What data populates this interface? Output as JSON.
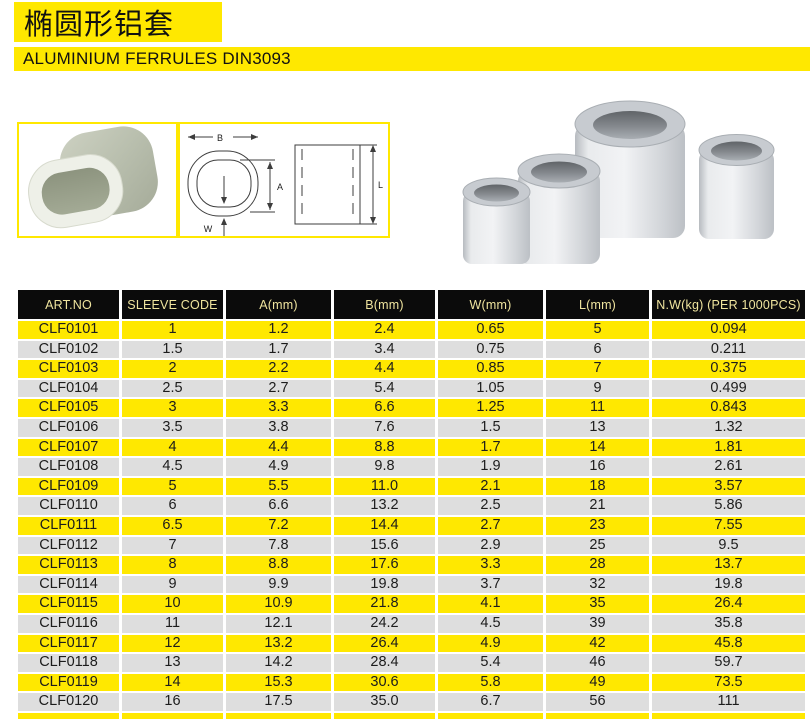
{
  "header": {
    "title_cn": "椭圆形铝套",
    "subtitle": "ALUMINIUM FERRULES DIN3093"
  },
  "diagram": {
    "labels": {
      "b": "B",
      "a": "A",
      "w": "W",
      "l": "L"
    }
  },
  "colors": {
    "yellow": "#ffe800",
    "row_gray": "#dedede",
    "header_bg": "#0b0b0b",
    "header_text": "#efe49e"
  },
  "table": {
    "columns": [
      "ART.NO",
      "SLEEVE CODE",
      "A(mm)",
      "B(mm)",
      "W(mm)",
      "L(mm)",
      "N.W(kg) (PER 1000PCS)"
    ],
    "rows": [
      [
        "CLF0101",
        "1",
        "1.2",
        "2.4",
        "0.65",
        "5",
        "0.094"
      ],
      [
        "CLF0102",
        "1.5",
        "1.7",
        "3.4",
        "0.75",
        "6",
        "0.211"
      ],
      [
        "CLF0103",
        "2",
        "2.2",
        "4.4",
        "0.85",
        "7",
        "0.375"
      ],
      [
        "CLF0104",
        "2.5",
        "2.7",
        "5.4",
        "1.05",
        "9",
        "0.499"
      ],
      [
        "CLF0105",
        "3",
        "3.3",
        "6.6",
        "1.25",
        "11",
        "0.843"
      ],
      [
        "CLF0106",
        "3.5",
        "3.8",
        "7.6",
        "1.5",
        "13",
        "1.32"
      ],
      [
        "CLF0107",
        "4",
        "4.4",
        "8.8",
        "1.7",
        "14",
        "1.81"
      ],
      [
        "CLF0108",
        "4.5",
        "4.9",
        "9.8",
        "1.9",
        "16",
        "2.61"
      ],
      [
        "CLF0109",
        "5",
        "5.5",
        "11.0",
        "2.1",
        "18",
        "3.57"
      ],
      [
        "CLF0110",
        "6",
        "6.6",
        "13.2",
        "2.5",
        "21",
        "5.86"
      ],
      [
        "CLF0111",
        "6.5",
        "7.2",
        "14.4",
        "2.7",
        "23",
        "7.55"
      ],
      [
        "CLF0112",
        "7",
        "7.8",
        "15.6",
        "2.9",
        "25",
        "9.5"
      ],
      [
        "CLF0113",
        "8",
        "8.8",
        "17.6",
        "3.3",
        "28",
        "13.7"
      ],
      [
        "CLF0114",
        "9",
        "9.9",
        "19.8",
        "3.7",
        "32",
        "19.8"
      ],
      [
        "CLF0115",
        "10",
        "10.9",
        "21.8",
        "4.1",
        "35",
        "26.4"
      ],
      [
        "CLF0116",
        "11",
        "12.1",
        "24.2",
        "4.5",
        "39",
        "35.8"
      ],
      [
        "CLF0117",
        "12",
        "13.2",
        "26.4",
        "4.9",
        "42",
        "45.8"
      ],
      [
        "CLF0118",
        "13",
        "14.2",
        "28.4",
        "5.4",
        "46",
        "59.7"
      ],
      [
        "CLF0119",
        "14",
        "15.3",
        "30.6",
        "5.8",
        "49",
        "73.5"
      ],
      [
        "CLF0120",
        "16",
        "17.5",
        "35.0",
        "6.7",
        "56",
        "111"
      ]
    ]
  }
}
